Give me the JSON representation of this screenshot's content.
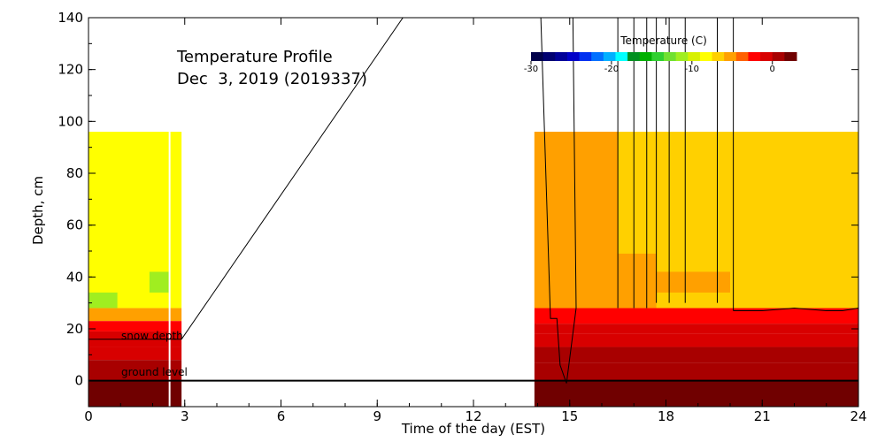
{
  "chart_data": {
    "type": "heatmap",
    "title": "Temperature Profile",
    "subtitle": "Dec  3, 2019 (2019337)",
    "xlabel": "Time of the day (EST)",
    "ylabel": "Depth, cm",
    "xlim": [
      0,
      24
    ],
    "ylim": [
      -10,
      140
    ],
    "xticks": [
      0,
      3,
      6,
      9,
      12,
      15,
      18,
      21,
      24
    ],
    "yticks": [
      0,
      20,
      40,
      60,
      80,
      100,
      120,
      140
    ],
    "colorbar": {
      "label": "Temperature (C)",
      "range": [
        -30,
        3
      ],
      "ticks": [
        -30,
        -20,
        -10,
        0
      ],
      "colors": [
        "#00004a",
        "#000070",
        "#000098",
        "#0000c8",
        "#0030f0",
        "#0070ff",
        "#00b0ff",
        "#00ffff",
        "#009020",
        "#00b000",
        "#30d030",
        "#70e030",
        "#a0ee20",
        "#d8f000",
        "#ffff00",
        "#ffd000",
        "#ffa000",
        "#ff6000",
        "#ff0000",
        "#d80000",
        "#a80000",
        "#700000"
      ]
    },
    "annotations": [
      {
        "text": "snow depth",
        "x": 1.0,
        "y": 16
      },
      {
        "text": "ground level",
        "x": 1.0,
        "y": 2
      }
    ],
    "ground_level": 0,
    "cells": [
      {
        "x0": 0,
        "x1": 2.9,
        "y0": 28,
        "y1": 96,
        "temp": -8.5
      },
      {
        "x0": 0,
        "x1": 0.9,
        "y0": 28,
        "y1": 34,
        "temp": -12
      },
      {
        "x0": 1.9,
        "x1": 2.5,
        "y0": 34,
        "y1": 42,
        "temp": -12
      },
      {
        "x0": 0,
        "x1": 2.9,
        "y0": 23,
        "y1": 28,
        "temp": -5
      },
      {
        "x0": 0,
        "x1": 2.9,
        "y0": 19,
        "y1": 23,
        "temp": -3
      },
      {
        "x0": 0,
        "x1": 2.9,
        "y0": 13,
        "y1": 19,
        "temp": -1
      },
      {
        "x0": 0,
        "x1": 2.9,
        "y0": 8,
        "y1": 13,
        "temp": -0.5
      },
      {
        "x0": 0,
        "x1": 2.9,
        "y0": 0,
        "y1": 8,
        "temp": 0.8
      },
      {
        "x0": 0,
        "x1": 2.9,
        "y0": -10,
        "y1": 0,
        "temp": 1.5
      },
      {
        "x0": 13.9,
        "x1": 24,
        "y0": 28,
        "y1": 96,
        "temp": -6.5
      },
      {
        "x0": 13.9,
        "x1": 16.5,
        "y0": 28,
        "y1": 96,
        "temp": -5
      },
      {
        "x0": 16.5,
        "x1": 17.7,
        "y0": 28,
        "y1": 49,
        "temp": -5
      },
      {
        "x0": 17.7,
        "x1": 20.0,
        "y0": 34,
        "y1": 42,
        "temp": -5
      },
      {
        "x0": 13.9,
        "x1": 24,
        "y0": 22,
        "y1": 28,
        "temp": -3
      },
      {
        "x0": 13.9,
        "x1": 20.0,
        "y0": 18,
        "y1": 22,
        "temp": -1
      },
      {
        "x0": 20.0,
        "x1": 24,
        "y0": 18,
        "y1": 22,
        "temp": -0.5
      },
      {
        "x0": 13.9,
        "x1": 24,
        "y0": 13,
        "y1": 18,
        "temp": -0.5
      },
      {
        "x0": 13.9,
        "x1": 24,
        "y0": 7,
        "y1": 13,
        "temp": 0
      },
      {
        "x0": 13.9,
        "x1": 24,
        "y0": 0,
        "y1": 7,
        "temp": 0.8
      },
      {
        "x0": 13.9,
        "x1": 24,
        "y0": -10,
        "y1": 0,
        "temp": 1.5
      }
    ],
    "snow_depth_line": [
      {
        "x": 2.9,
        "y": 16
      },
      {
        "x": 9.8,
        "y": 140
      }
    ],
    "snow_depth_trace": [
      {
        "x": 14.1,
        "y": 140
      },
      {
        "x": 14.4,
        "y": 24
      },
      {
        "x": 14.6,
        "y": 24
      },
      {
        "x": 14.7,
        "y": 6
      },
      {
        "x": 14.9,
        "y": -1
      },
      {
        "x": 15.2,
        "y": 28
      },
      {
        "x": 15.1,
        "y": 140
      }
    ]
  }
}
